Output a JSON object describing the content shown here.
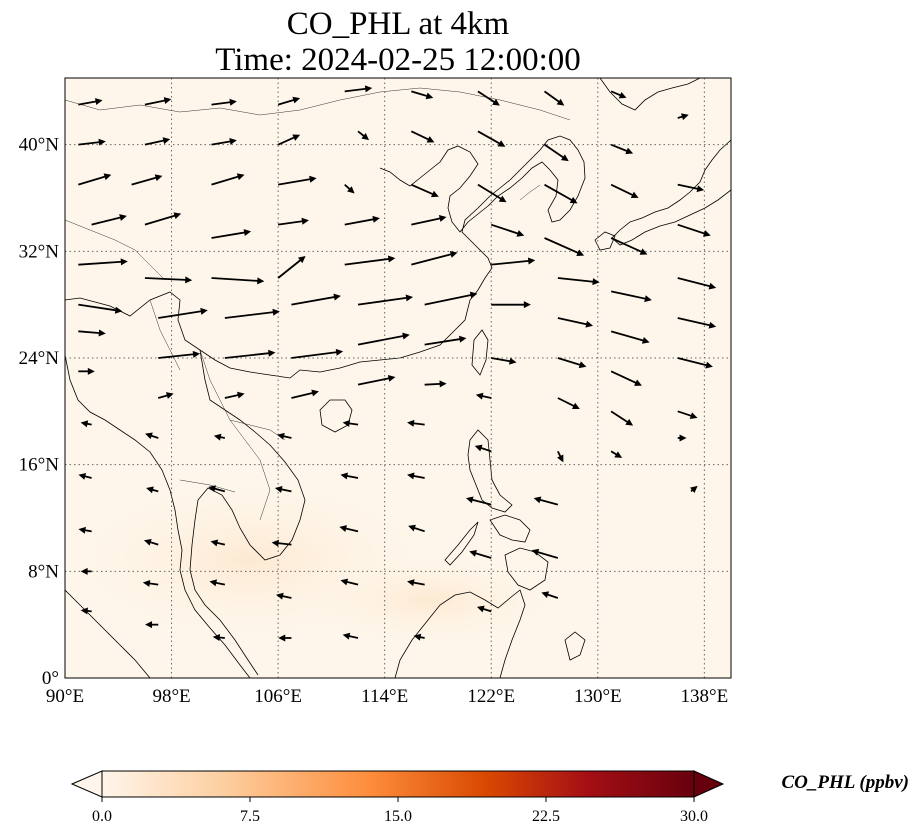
{
  "title": {
    "line1": "CO_PHL at 4km",
    "line2": "Time: 2024-02-25 12:00:00"
  },
  "map": {
    "lon_range": [
      90,
      140
    ],
    "lat_range": [
      0,
      45
    ],
    "background_color": "#fef6ea",
    "gridlines": true,
    "x_ticks": [
      {
        "lon": 90,
        "label": "90°E"
      },
      {
        "lon": 98,
        "label": "98°E"
      },
      {
        "lon": 106,
        "label": "106°E"
      },
      {
        "lon": 114,
        "label": "114°E"
      },
      {
        "lon": 122,
        "label": "122°E"
      },
      {
        "lon": 130,
        "label": "130°E"
      },
      {
        "lon": 138,
        "label": "138°E"
      }
    ],
    "y_ticks": [
      {
        "lat": 0,
        "label": "0°"
      },
      {
        "lat": 8,
        "label": "8°N"
      },
      {
        "lat": 16,
        "label": "16°N"
      },
      {
        "lat": 24,
        "label": "24°N"
      },
      {
        "lat": 32,
        "label": "32°N"
      },
      {
        "lat": 40,
        "label": "40°N"
      }
    ]
  },
  "colorbar": {
    "label": "CO_PHL (ppbv)",
    "min": 0.0,
    "max": 30.0,
    "extend": "both",
    "ticks": [
      "0.0",
      "7.5",
      "15.0",
      "22.5",
      "30.0"
    ],
    "colors": [
      "#fff5eb",
      "#fdd0a2",
      "#fd8d3c",
      "#d94801",
      "#a50f15",
      "#67000d"
    ]
  },
  "wind": {
    "description_levels": "westerlies north of ~24°N, north-easterly trades to the south",
    "vectors": [
      {
        "lon": 91,
        "lat": 43,
        "u": 2.2,
        "v": 0.4
      },
      {
        "lon": 91,
        "lat": 40,
        "u": 2.5,
        "v": 0.3
      },
      {
        "lon": 91,
        "lat": 37,
        "u": 3.0,
        "v": 0.9
      },
      {
        "lon": 92,
        "lat": 34,
        "u": 3.2,
        "v": 0.8
      },
      {
        "lon": 91,
        "lat": 31,
        "u": 4.5,
        "v": 0.3
      },
      {
        "lon": 91,
        "lat": 28,
        "u": 4.0,
        "v": -0.6
      },
      {
        "lon": 91,
        "lat": 26,
        "u": 2.5,
        "v": -0.2
      },
      {
        "lon": 91,
        "lat": 23,
        "u": 1.5,
        "v": 0.0
      },
      {
        "lon": 92,
        "lat": 19,
        "u": -1.0,
        "v": 0.2
      },
      {
        "lon": 92,
        "lat": 15,
        "u": -1.2,
        "v": 0.3
      },
      {
        "lon": 92,
        "lat": 11,
        "u": -1.2,
        "v": 0.2
      },
      {
        "lon": 92,
        "lat": 8,
        "u": -1.0,
        "v": 0.0
      },
      {
        "lon": 92,
        "lat": 5,
        "u": -1.0,
        "v": 0.1
      },
      {
        "lon": 96,
        "lat": 43,
        "u": 2.4,
        "v": 0.5
      },
      {
        "lon": 96,
        "lat": 40,
        "u": 2.3,
        "v": 0.5
      },
      {
        "lon": 95,
        "lat": 37,
        "u": 2.8,
        "v": 0.8
      },
      {
        "lon": 96,
        "lat": 34,
        "u": 3.3,
        "v": 1.0
      },
      {
        "lon": 96,
        "lat": 30,
        "u": 4.3,
        "v": -0.2
      },
      {
        "lon": 97,
        "lat": 27,
        "u": 4.5,
        "v": 0.7
      },
      {
        "lon": 97,
        "lat": 24,
        "u": 3.8,
        "v": 0.4
      },
      {
        "lon": 97,
        "lat": 21,
        "u": 1.4,
        "v": 0.4
      },
      {
        "lon": 97,
        "lat": 18,
        "u": -1.2,
        "v": 0.4
      },
      {
        "lon": 97,
        "lat": 14,
        "u": -1.1,
        "v": 0.3
      },
      {
        "lon": 97,
        "lat": 10,
        "u": -1.3,
        "v": 0.4
      },
      {
        "lon": 97,
        "lat": 7,
        "u": -1.4,
        "v": 0.2
      },
      {
        "lon": 97,
        "lat": 4,
        "u": -1.2,
        "v": 0.0
      },
      {
        "lon": 101,
        "lat": 43,
        "u": 2.3,
        "v": 0.3
      },
      {
        "lon": 101,
        "lat": 40,
        "u": 2.3,
        "v": 0.4
      },
      {
        "lon": 101,
        "lat": 37,
        "u": 3.0,
        "v": 0.9
      },
      {
        "lon": 101,
        "lat": 33,
        "u": 3.6,
        "v": 0.6
      },
      {
        "lon": 101,
        "lat": 30,
        "u": 4.8,
        "v": -0.3
      },
      {
        "lon": 102,
        "lat": 27,
        "u": 5.0,
        "v": 0.6
      },
      {
        "lon": 102,
        "lat": 24,
        "u": 4.6,
        "v": 0.5
      },
      {
        "lon": 102,
        "lat": 21,
        "u": 1.8,
        "v": 0.4
      },
      {
        "lon": 102,
        "lat": 18,
        "u": -1.0,
        "v": 0.2
      },
      {
        "lon": 102,
        "lat": 14,
        "u": -1.5,
        "v": 0.4
      },
      {
        "lon": 102,
        "lat": 10,
        "u": -1.3,
        "v": 0.3
      },
      {
        "lon": 102,
        "lat": 7,
        "u": -1.4,
        "v": 0.3
      },
      {
        "lon": 102,
        "lat": 3,
        "u": -1.1,
        "v": 0.1
      },
      {
        "lon": 106,
        "lat": 43,
        "u": 2.0,
        "v": 0.6
      },
      {
        "lon": 106,
        "lat": 40,
        "u": 2.0,
        "v": 0.9
      },
      {
        "lon": 106,
        "lat": 37,
        "u": 3.5,
        "v": 0.6
      },
      {
        "lon": 106,
        "lat": 34,
        "u": 2.8,
        "v": 0.4
      },
      {
        "lon": 106,
        "lat": 30,
        "u": 2.5,
        "v": 2.0
      },
      {
        "lon": 107,
        "lat": 28,
        "u": 4.5,
        "v": 0.8
      },
      {
        "lon": 107,
        "lat": 24,
        "u": 4.7,
        "v": 0.6
      },
      {
        "lon": 107,
        "lat": 21,
        "u": 2.5,
        "v": 0.6
      },
      {
        "lon": 107,
        "lat": 18,
        "u": -1.3,
        "v": 0.3
      },
      {
        "lon": 107,
        "lat": 14,
        "u": -1.5,
        "v": 0.3
      },
      {
        "lon": 107,
        "lat": 10,
        "u": -1.8,
        "v": 0.2
      },
      {
        "lon": 107,
        "lat": 6,
        "u": -1.4,
        "v": 0.3
      },
      {
        "lon": 107,
        "lat": 3,
        "u": -1.2,
        "v": 0.0
      },
      {
        "lon": 111,
        "lat": 44,
        "u": 2.5,
        "v": 0.3
      },
      {
        "lon": 112,
        "lat": 41,
        "u": 1.0,
        "v": -0.8
      },
      {
        "lon": 111,
        "lat": 37,
        "u": 0.9,
        "v": -0.8
      },
      {
        "lon": 111,
        "lat": 34,
        "u": 3.2,
        "v": 0.6
      },
      {
        "lon": 111,
        "lat": 31,
        "u": 4.6,
        "v": 0.6
      },
      {
        "lon": 112,
        "lat": 28,
        "u": 5.0,
        "v": 0.7
      },
      {
        "lon": 112,
        "lat": 25,
        "u": 4.7,
        "v": 0.9
      },
      {
        "lon": 112,
        "lat": 22,
        "u": 3.4,
        "v": 0.7
      },
      {
        "lon": 112,
        "lat": 19,
        "u": -1.4,
        "v": 0.2
      },
      {
        "lon": 112,
        "lat": 15,
        "u": -1.6,
        "v": 0.3
      },
      {
        "lon": 112,
        "lat": 11,
        "u": -1.7,
        "v": 0.4
      },
      {
        "lon": 112,
        "lat": 7,
        "u": -1.6,
        "v": 0.4
      },
      {
        "lon": 112,
        "lat": 3,
        "u": -1.4,
        "v": 0.3
      },
      {
        "lon": 116,
        "lat": 44,
        "u": 2.0,
        "v": -0.6
      },
      {
        "lon": 116,
        "lat": 41,
        "u": 2.1,
        "v": -1.0
      },
      {
        "lon": 116,
        "lat": 37,
        "u": 2.5,
        "v": -1.1
      },
      {
        "lon": 116,
        "lat": 34,
        "u": 3.2,
        "v": 0.7
      },
      {
        "lon": 116,
        "lat": 31,
        "u": 4.2,
        "v": 1.1
      },
      {
        "lon": 117,
        "lat": 28,
        "u": 4.8,
        "v": 1.0
      },
      {
        "lon": 117,
        "lat": 25,
        "u": 3.8,
        "v": 0.6
      },
      {
        "lon": 117,
        "lat": 22,
        "u": 2.0,
        "v": 0.1
      },
      {
        "lon": 117,
        "lat": 19,
        "u": -1.6,
        "v": 0.2
      },
      {
        "lon": 117,
        "lat": 15,
        "u": -1.6,
        "v": 0.3
      },
      {
        "lon": 117,
        "lat": 11,
        "u": -1.5,
        "v": 0.5
      },
      {
        "lon": 117,
        "lat": 7,
        "u": -1.6,
        "v": 0.3
      },
      {
        "lon": 117,
        "lat": 3,
        "u": -1.0,
        "v": 0.2
      },
      {
        "lon": 121,
        "lat": 44,
        "u": 2.0,
        "v": -1.3
      },
      {
        "lon": 121,
        "lat": 41,
        "u": 2.5,
        "v": -1.4
      },
      {
        "lon": 121,
        "lat": 37,
        "u": 2.6,
        "v": -1.6
      },
      {
        "lon": 122,
        "lat": 34,
        "u": 3.0,
        "v": -1.0
      },
      {
        "lon": 122,
        "lat": 31,
        "u": 4.0,
        "v": 0.4
      },
      {
        "lon": 122,
        "lat": 28,
        "u": 3.6,
        "v": 0.0
      },
      {
        "lon": 122,
        "lat": 24,
        "u": 2.3,
        "v": -0.4
      },
      {
        "lon": 122,
        "lat": 21,
        "u": -1.4,
        "v": 0.3
      },
      {
        "lon": 122,
        "lat": 17,
        "u": -1.5,
        "v": 0.5
      },
      {
        "lon": 122,
        "lat": 13,
        "u": -2.3,
        "v": 0.6
      },
      {
        "lon": 122,
        "lat": 9,
        "u": -2.0,
        "v": 0.6
      },
      {
        "lon": 122,
        "lat": 5,
        "u": -1.3,
        "v": 0.4
      },
      {
        "lon": 126,
        "lat": 44,
        "u": 1.8,
        "v": -1.3
      },
      {
        "lon": 126,
        "lat": 40,
        "u": 2.2,
        "v": -1.5
      },
      {
        "lon": 126,
        "lat": 37,
        "u": 3.0,
        "v": -1.7
      },
      {
        "lon": 126,
        "lat": 33,
        "u": 3.6,
        "v": -1.6
      },
      {
        "lon": 127,
        "lat": 30,
        "u": 3.8,
        "v": -0.4
      },
      {
        "lon": 127,
        "lat": 27,
        "u": 3.2,
        "v": -0.7
      },
      {
        "lon": 127,
        "lat": 24,
        "u": 2.6,
        "v": -0.8
      },
      {
        "lon": 127,
        "lat": 21,
        "u": 2.0,
        "v": -1.0
      },
      {
        "lon": 127,
        "lat": 17,
        "u": 0.5,
        "v": -1.0
      },
      {
        "lon": 127,
        "lat": 13,
        "u": -2.2,
        "v": 0.6
      },
      {
        "lon": 127,
        "lat": 9,
        "u": -2.4,
        "v": 0.7
      },
      {
        "lon": 127,
        "lat": 6,
        "u": -1.5,
        "v": 0.5
      },
      {
        "lon": 131,
        "lat": 44,
        "u": 1.4,
        "v": -0.6
      },
      {
        "lon": 131,
        "lat": 40,
        "u": 2.0,
        "v": -0.8
      },
      {
        "lon": 131,
        "lat": 37,
        "u": 2.5,
        "v": -1.2
      },
      {
        "lon": 131,
        "lat": 33,
        "u": 3.3,
        "v": -1.5
      },
      {
        "lon": 131,
        "lat": 29,
        "u": 3.7,
        "v": -0.8
      },
      {
        "lon": 131,
        "lat": 26,
        "u": 3.5,
        "v": -1.0
      },
      {
        "lon": 131,
        "lat": 23,
        "u": 2.8,
        "v": -1.3
      },
      {
        "lon": 131,
        "lat": 20,
        "u": 2.0,
        "v": -1.3
      },
      {
        "lon": 131,
        "lat": 17,
        "u": 1.0,
        "v": -0.6
      },
      {
        "lon": 136,
        "lat": 42,
        "u": 1.0,
        "v": 0.3
      },
      {
        "lon": 136,
        "lat": 37,
        "u": 2.4,
        "v": -0.5
      },
      {
        "lon": 136,
        "lat": 34,
        "u": 3.0,
        "v": -1.0
      },
      {
        "lon": 136,
        "lat": 30,
        "u": 3.5,
        "v": -0.9
      },
      {
        "lon": 136,
        "lat": 27,
        "u": 3.5,
        "v": -0.8
      },
      {
        "lon": 136,
        "lat": 24,
        "u": 3.2,
        "v": -0.8
      },
      {
        "lon": 136,
        "lat": 20,
        "u": 1.8,
        "v": -0.6
      },
      {
        "lon": 136,
        "lat": 18,
        "u": 0.8,
        "v": 0.0
      },
      {
        "lon": 137,
        "lat": 14,
        "u": 0.6,
        "v": 0.5
      }
    ]
  }
}
